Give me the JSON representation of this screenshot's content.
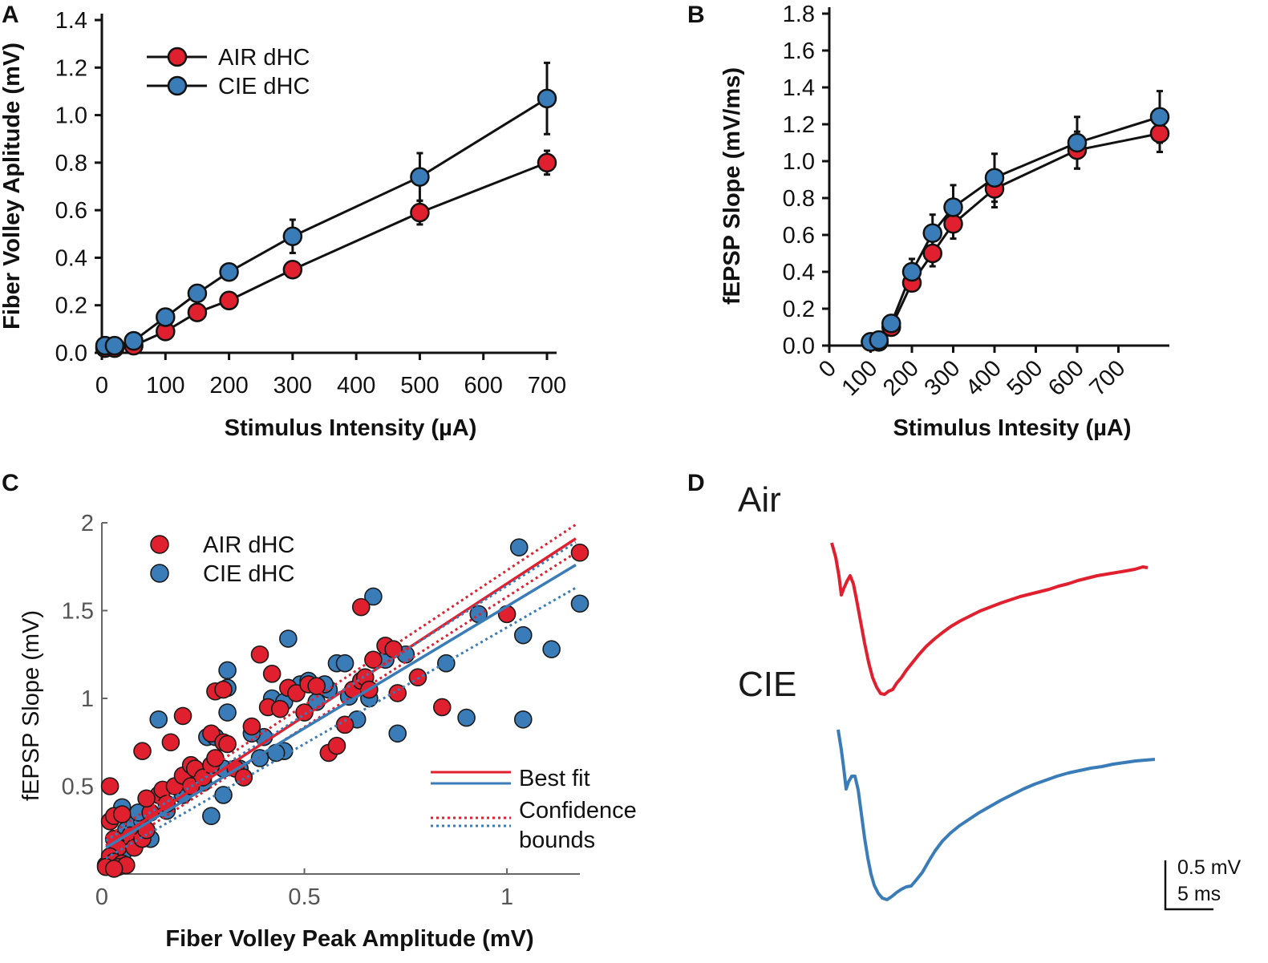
{
  "colors": {
    "air": "#e0202e",
    "cie": "#3a7cb8",
    "axis": "#111111",
    "axisC": "#666666"
  },
  "chart_data": [
    {
      "panel": "A",
      "type": "line",
      "xlabel": "Stimulus Intensity (µA)",
      "ylabel": "Fiber Volley Aplitude (mV)",
      "xlim": [
        0,
        700
      ],
      "ylim": [
        0,
        1.4
      ],
      "xticks": [
        "0",
        "100",
        "200",
        "300",
        "400",
        "500",
        "600",
        "700"
      ],
      "yticks": [
        "0.0",
        "0.2",
        "0.4",
        "0.6",
        "0.8",
        "1.0",
        "1.2",
        "1.4"
      ],
      "legend": [
        "AIR dHC",
        "CIE dHC"
      ],
      "series": [
        {
          "name": "AIR dHC",
          "x": [
            5,
            20,
            50,
            100,
            150,
            200,
            300,
            500,
            700
          ],
          "y": [
            0.02,
            0.02,
            0.03,
            0.09,
            0.17,
            0.22,
            0.35,
            0.59,
            0.8
          ],
          "err": [
            0.005,
            0.005,
            0.01,
            0.02,
            0.02,
            0.02,
            0.04,
            0.05,
            0.05
          ]
        },
        {
          "name": "CIE dHC",
          "x": [
            5,
            20,
            50,
            100,
            150,
            200,
            300,
            500,
            700
          ],
          "y": [
            0.03,
            0.03,
            0.05,
            0.15,
            0.25,
            0.34,
            0.49,
            0.74,
            1.07
          ],
          "err": [
            0.005,
            0.005,
            0.01,
            0.02,
            0.04,
            0.04,
            0.07,
            0.1,
            0.15
          ]
        }
      ]
    },
    {
      "panel": "B",
      "type": "line",
      "xlabel": "Stimulus Intesity (µA)",
      "ylabel": "fEPSP Slope (mV/ms)",
      "xlim": [
        0,
        800
      ],
      "ylim": [
        0,
        1.8
      ],
      "xticks": [
        "0",
        "100",
        "200",
        "300",
        "400",
        "500",
        "600",
        "700"
      ],
      "yticks": [
        "0.0",
        "0.2",
        "0.4",
        "0.6",
        "0.8",
        "1.0",
        "1.2",
        "1.4",
        "1.6",
        "1.8"
      ],
      "series": [
        {
          "name": "AIR dHC",
          "x": [
            100,
            120,
            150,
            200,
            250,
            300,
            400,
            600,
            800
          ],
          "y": [
            0.02,
            0.02,
            0.1,
            0.34,
            0.5,
            0.66,
            0.85,
            1.06,
            1.15
          ],
          "err": [
            0.005,
            0.005,
            0.02,
            0.05,
            0.07,
            0.08,
            0.1,
            0.1,
            0.1
          ]
        },
        {
          "name": "CIE dHC",
          "x": [
            100,
            120,
            150,
            200,
            250,
            300,
            400,
            600,
            800
          ],
          "y": [
            0.02,
            0.03,
            0.12,
            0.4,
            0.61,
            0.75,
            0.91,
            1.1,
            1.24
          ],
          "err": [
            0.005,
            0.005,
            0.03,
            0.07,
            0.1,
            0.12,
            0.13,
            0.14,
            0.14
          ]
        }
      ]
    },
    {
      "panel": "C",
      "type": "scatter",
      "xlabel": "Fiber Volley Peak Amplitude (mV)",
      "ylabel": "fEPSP Slope (mV)",
      "xlim": [
        0,
        1.18
      ],
      "ylim": [
        0,
        2
      ],
      "xticks": [
        "0",
        "0.5",
        "1"
      ],
      "yticks": [
        "0.5",
        "1",
        "1.5",
        "2"
      ],
      "legend": [
        "AIR dHC",
        "CIE dHC"
      ],
      "fit_legend": {
        "best": "Best fit",
        "conf1": "Confidence",
        "conf2": "bounds"
      },
      "fits": [
        {
          "name": "AIR dHC",
          "x": [
            0.01,
            1.17
          ],
          "best": [
            0.16,
            1.91
          ],
          "upper": [
            0.21,
            1.99
          ],
          "lower": [
            0.11,
            1.83
          ]
        },
        {
          "name": "CIE dHC",
          "x": [
            0.01,
            1.17
          ],
          "best": [
            0.15,
            1.76
          ],
          "upper": [
            0.19,
            1.89
          ],
          "lower": [
            0.09,
            1.63
          ]
        }
      ],
      "series": [
        {
          "name": "AIR dHC",
          "points": [
            [
              0.02,
              0.5
            ],
            [
              0.02,
              0.3
            ],
            [
              0.03,
              0.33
            ],
            [
              0.05,
              0.34
            ],
            [
              0.03,
              0.2
            ],
            [
              0.04,
              0.15
            ],
            [
              0.02,
              0.1
            ],
            [
              0.03,
              0.07
            ],
            [
              0.05,
              0.06
            ],
            [
              0.01,
              0.04
            ],
            [
              0.04,
              0.04
            ],
            [
              0.06,
              0.05
            ],
            [
              0.03,
              0.03
            ],
            [
              0.07,
              0.22
            ],
            [
              0.08,
              0.15
            ],
            [
              0.1,
              0.2
            ],
            [
              0.11,
              0.25
            ],
            [
              0.12,
              0.35
            ],
            [
              0.14,
              0.45
            ],
            [
              0.15,
              0.48
            ],
            [
              0.16,
              0.4
            ],
            [
              0.18,
              0.5
            ],
            [
              0.1,
              0.7
            ],
            [
              0.11,
              0.43
            ],
            [
              0.17,
              0.75
            ],
            [
              0.2,
              0.9
            ],
            [
              0.2,
              0.56
            ],
            [
              0.22,
              0.62
            ],
            [
              0.23,
              0.6
            ],
            [
              0.22,
              0.5
            ],
            [
              0.25,
              0.55
            ],
            [
              0.27,
              0.62
            ],
            [
              0.28,
              0.66
            ],
            [
              0.27,
              0.8
            ],
            [
              0.28,
              1.04
            ],
            [
              0.3,
              1.05
            ],
            [
              0.3,
              0.75
            ],
            [
              0.31,
              0.74
            ],
            [
              0.33,
              0.6
            ],
            [
              0.35,
              0.55
            ],
            [
              0.37,
              0.84
            ],
            [
              0.39,
              1.25
            ],
            [
              0.41,
              0.95
            ],
            [
              0.42,
              1.14
            ],
            [
              0.44,
              0.94
            ],
            [
              0.46,
              1.06
            ],
            [
              0.48,
              1.03
            ],
            [
              0.5,
              0.92
            ],
            [
              0.51,
              1.08
            ],
            [
              0.53,
              1.07
            ],
            [
              0.56,
              0.69
            ],
            [
              0.58,
              0.73
            ],
            [
              0.6,
              0.85
            ],
            [
              0.62,
              1.05
            ],
            [
              0.64,
              1.1
            ],
            [
              0.65,
              1.12
            ],
            [
              0.64,
              1.52
            ],
            [
              0.66,
              1.05
            ],
            [
              0.67,
              1.22
            ],
            [
              0.7,
              1.3
            ],
            [
              0.72,
              1.28
            ],
            [
              0.73,
              1.03
            ],
            [
              0.78,
              1.12
            ],
            [
              0.84,
              0.95
            ],
            [
              1.0,
              1.48
            ],
            [
              1.18,
              1.83
            ]
          ]
        },
        {
          "name": "CIE dHC",
          "points": [
            [
              0.01,
              0.05
            ],
            [
              0.02,
              0.06
            ],
            [
              0.03,
              0.1
            ],
            [
              0.05,
              0.1
            ],
            [
              0.04,
              0.2
            ],
            [
              0.06,
              0.25
            ],
            [
              0.05,
              0.38
            ],
            [
              0.08,
              0.28
            ],
            [
              0.1,
              0.3
            ],
            [
              0.12,
              0.2
            ],
            [
              0.09,
              0.35
            ],
            [
              0.14,
              0.88
            ],
            [
              0.16,
              0.36
            ],
            [
              0.2,
              0.45
            ],
            [
              0.22,
              0.58
            ],
            [
              0.25,
              0.52
            ],
            [
              0.26,
              0.78
            ],
            [
              0.28,
              0.78
            ],
            [
              0.28,
              0.65
            ],
            [
              0.3,
              0.6
            ],
            [
              0.31,
              1.06
            ],
            [
              0.31,
              1.16
            ],
            [
              0.31,
              0.92
            ],
            [
              0.3,
              0.45
            ],
            [
              0.27,
              0.33
            ],
            [
              0.34,
              0.6
            ],
            [
              0.39,
              0.66
            ],
            [
              0.4,
              0.78
            ],
            [
              0.42,
              1.0
            ],
            [
              0.45,
              0.98
            ],
            [
              0.45,
              0.7
            ],
            [
              0.46,
              1.34
            ],
            [
              0.49,
              1.08
            ],
            [
              0.51,
              1.1
            ],
            [
              0.56,
              1.05
            ],
            [
              0.58,
              1.2
            ],
            [
              0.6,
              1.2
            ],
            [
              0.61,
              1.01
            ],
            [
              0.63,
              0.88
            ],
            [
              0.66,
              1.0
            ],
            [
              0.67,
              1.58
            ],
            [
              0.7,
              1.22
            ],
            [
              0.73,
              0.8
            ],
            [
              0.75,
              1.25
            ],
            [
              0.85,
              1.2
            ],
            [
              0.9,
              0.89
            ],
            [
              0.93,
              1.48
            ],
            [
              1.03,
              1.86
            ],
            [
              1.04,
              1.36
            ],
            [
              1.04,
              0.88
            ],
            [
              1.11,
              1.28
            ],
            [
              1.18,
              1.54
            ],
            [
              0.37,
              0.8
            ],
            [
              0.43,
              0.69
            ],
            [
              0.53,
              0.98
            ],
            [
              0.55,
              1.08
            ]
          ]
        }
      ]
    }
  ],
  "panelD": {
    "title_air": "Air",
    "title_cie": "CIE",
    "scale_mv": "0.5 mV",
    "scale_ms": "5 ms"
  },
  "labels": {
    "A": "A",
    "B": "B",
    "C": "C",
    "D": "D"
  }
}
